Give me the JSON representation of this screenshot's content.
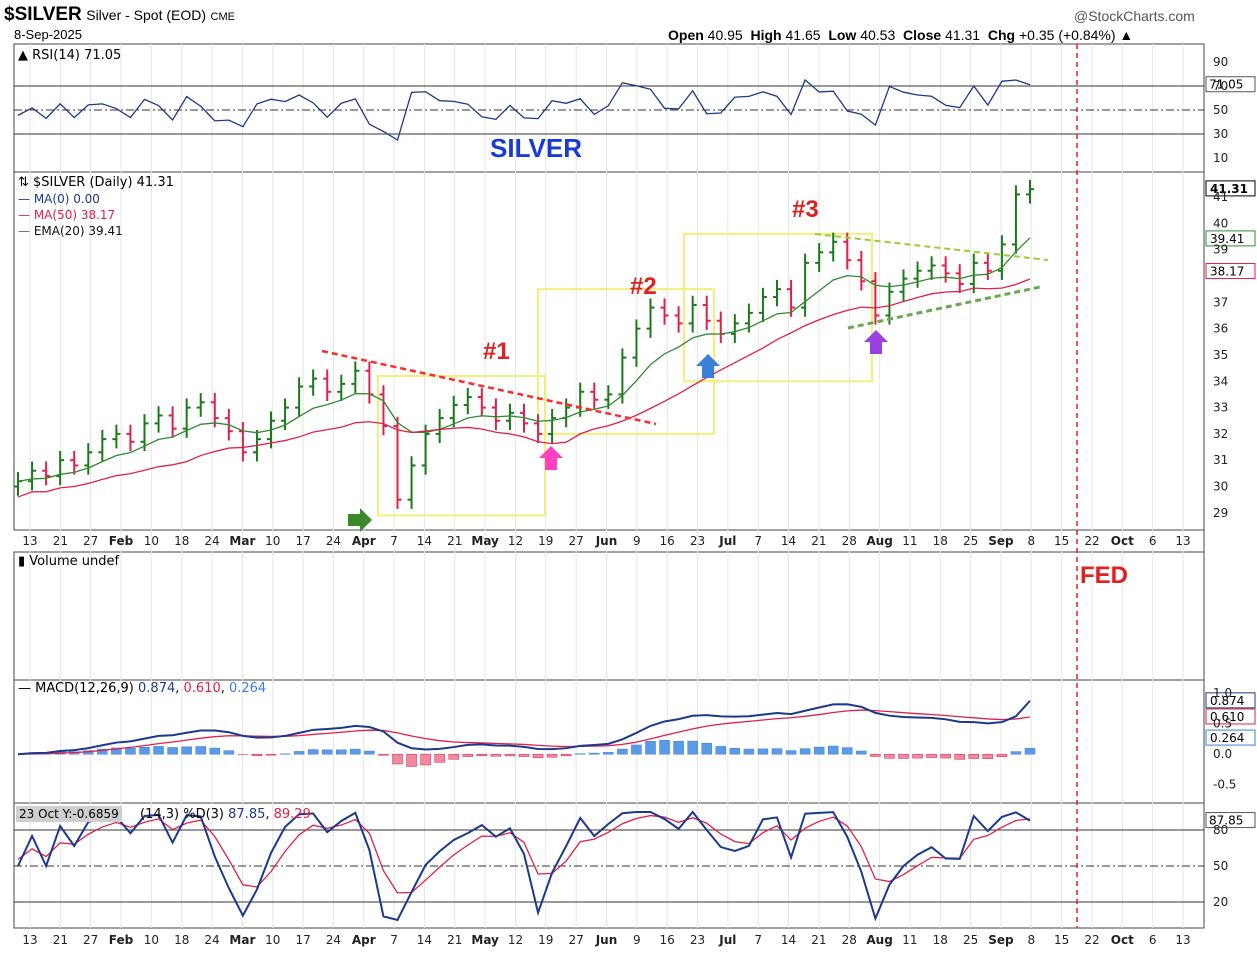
{
  "header": {
    "symbol": "$SILVER",
    "name": "Silver - Spot (EOD)",
    "exchange": "CME",
    "date": "8-Sep-2025",
    "source": "@StockCharts.com",
    "open_label": "Open",
    "open": "40.95",
    "high_label": "High",
    "high": "41.65",
    "low_label": "Low",
    "low": "40.53",
    "close_label": "Close",
    "close": "41.31",
    "chg_label": "Chg",
    "chg": "+0.35 (+0.84%)"
  },
  "rsi": {
    "legend": "RSI(14) 71.05",
    "value_tag": "71.05",
    "ticks": [
      "90",
      "70",
      "50",
      "30",
      "10"
    ],
    "banner": "SILVER"
  },
  "price": {
    "legend_main": "$SILVER (Daily) 41.31",
    "legend_ma0": "MA(0) 0.00",
    "legend_ma50": "MA(50) 38.17",
    "legend_ema20": "EMA(20) 39.41",
    "last_tag": "41.31",
    "ema_tag": "39.41",
    "ma50_tag": "38.17",
    "annotations": [
      "#1",
      "#2",
      "#3"
    ],
    "y_ticks": [
      "41",
      "40",
      "39",
      "37",
      "36",
      "35",
      "34",
      "33",
      "32",
      "31",
      "30",
      "29"
    ]
  },
  "volume": {
    "legend": "Volume undef",
    "fed_label": "FED"
  },
  "macd": {
    "legend_prefix": "MACD(12,26,9)",
    "macd": "0.874",
    "signal": "0.610",
    "hist": "0.264",
    "ticks": [
      "1.0",
      "0.5",
      "0.0",
      "-0.5"
    ]
  },
  "stoch": {
    "crosshair": "23 Oct Y:-0.6859",
    "legend_rest": "(14,3) %D(3)",
    "k": "87.85",
    "d": "89.29",
    "value_tag": "87.85",
    "ticks": [
      "80",
      "50",
      "20"
    ]
  },
  "x_axis": {
    "labels": [
      "13",
      "21",
      "27",
      "Feb",
      "10",
      "18",
      "24",
      "Mar",
      "10",
      "17",
      "24",
      "Apr",
      "7",
      "14",
      "21",
      "May",
      "12",
      "19",
      "27",
      "Jun",
      "9",
      "16",
      "23",
      "Jul",
      "7",
      "14",
      "21",
      "28",
      "Aug",
      "11",
      "18",
      "25",
      "Sep",
      "8",
      "15",
      "22",
      "Oct",
      "6",
      "13"
    ],
    "bold": [
      "Feb",
      "Mar",
      "Apr",
      "May",
      "Jun",
      "Jul",
      "Aug",
      "Sep",
      "Oct"
    ]
  },
  "colors": {
    "up": "#1a7a1a",
    "down": "#e0204a",
    "ema": "#2e8b2e",
    "ma50": "#e0204a",
    "macd_line": "#1b3a8c",
    "signal_line": "#e0204a",
    "hist": "#3b7fd8",
    "box": "#ffff80",
    "fed": "#e02020",
    "banner": "#1a3ad8"
  },
  "chart_data": {
    "type": "line",
    "price_series_close": [
      30.2,
      30.6,
      30.4,
      31.0,
      30.8,
      31.3,
      31.8,
      32.0,
      31.7,
      32.4,
      32.7,
      32.2,
      33.0,
      33.2,
      32.6,
      32.1,
      31.3,
      31.8,
      32.5,
      33.0,
      33.8,
      34.1,
      33.6,
      33.9,
      34.4,
      33.5,
      32.3,
      29.5,
      30.8,
      32.0,
      32.6,
      33.1,
      33.4,
      33.0,
      32.5,
      32.8,
      32.4,
      32.0,
      32.6,
      33.0,
      33.6,
      33.3,
      33.5,
      34.9,
      36.0,
      36.8,
      36.5,
      36.2,
      36.9,
      36.3,
      35.8,
      36.2,
      36.6,
      37.2,
      37.5,
      36.8,
      38.5,
      38.9,
      39.3,
      38.6,
      37.8,
      36.5,
      37.4,
      37.9,
      38.2,
      38.4,
      38.1,
      37.7,
      38.5,
      38.2,
      39.2,
      41.1,
      41.3
    ],
    "fed_marker": "22",
    "rsi_last": 71.05,
    "macd_last": 0.874,
    "signal_last": 0.61,
    "hist_last": 0.264,
    "stoch_k_last": 87.85,
    "stoch_d_last": 89.29,
    "ylim_price": [
      28.5,
      41.8
    ]
  }
}
